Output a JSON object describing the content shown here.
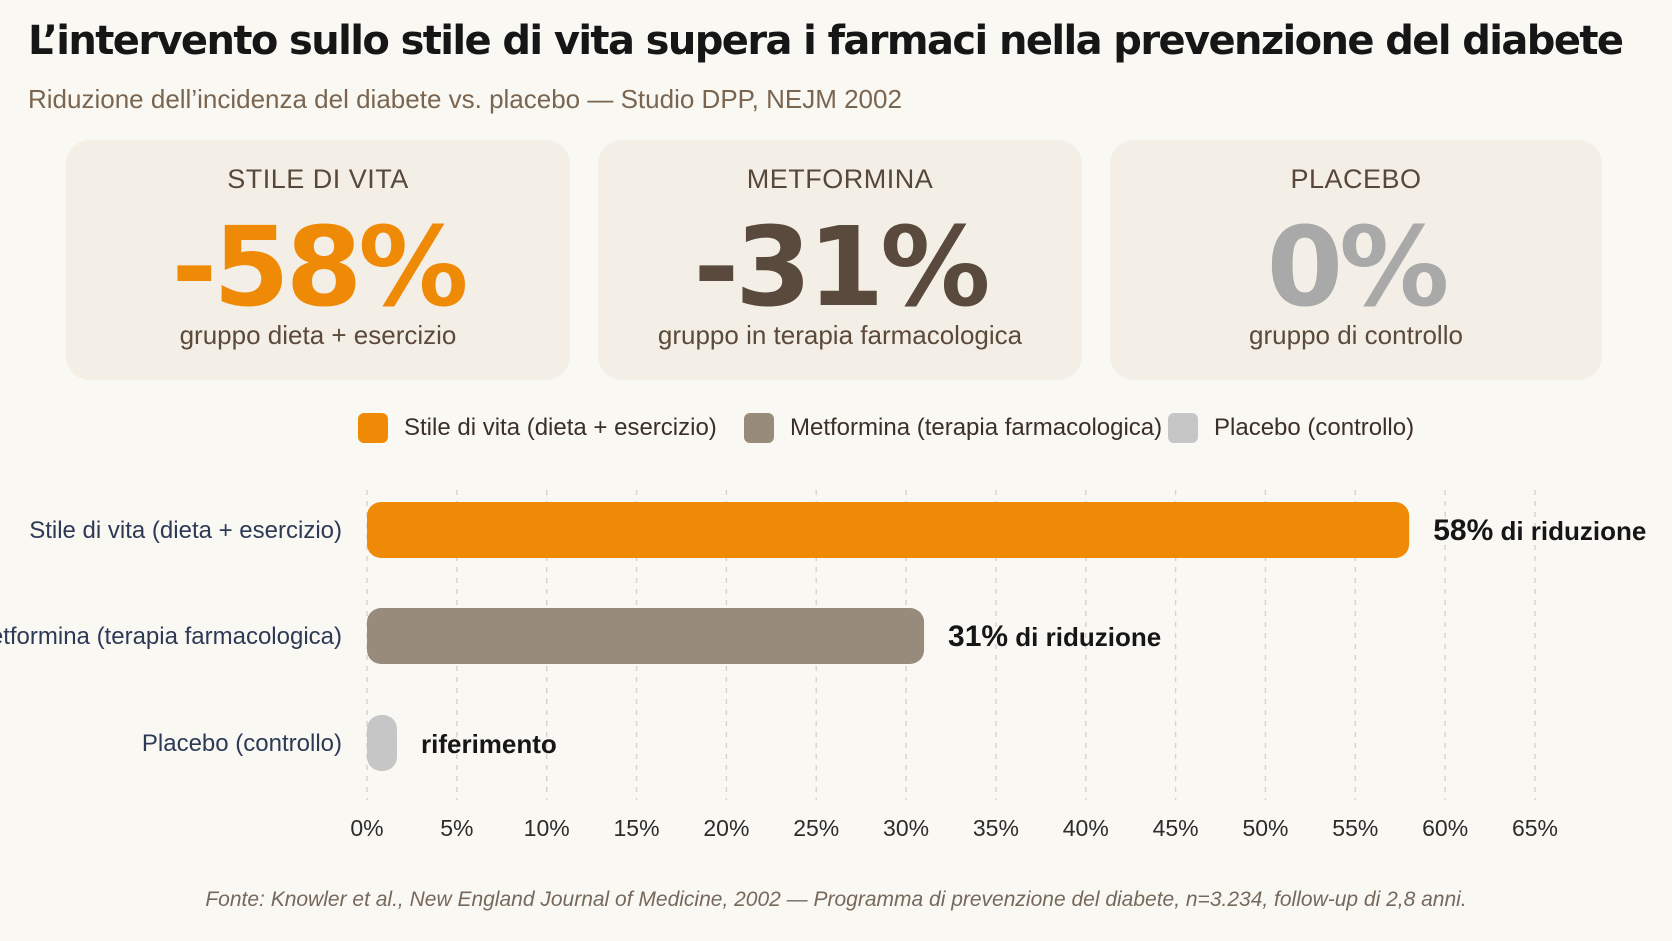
{
  "title": "L’intervento sullo stile di vita supera i farmaci nella prevenzione del diabete",
  "subtitle": "Riduzione dell’incidenza del diabete vs. placebo — Studio DPP, NEJM 2002",
  "cards": [
    {
      "label": "STILE DI VITA",
      "value": "-58%",
      "desc": "gruppo dieta + esercizio",
      "color": "#ef8a06"
    },
    {
      "label": "METFORMINA",
      "value": "-31%",
      "desc": "gruppo in terapia farmacologica",
      "color": "#5a4a3d"
    },
    {
      "label": "PLACEBO",
      "value": "0%",
      "desc": "gruppo di controllo",
      "color": "#a9a9a9"
    }
  ],
  "legend": [
    {
      "label": "Stile di vita (dieta + esercizio)",
      "color": "#ef8a06"
    },
    {
      "label": "Metformina (terapia farmacologica)",
      "color": "#978b7b"
    },
    {
      "label": "Placebo (controllo)",
      "color": "#c6c6c6"
    }
  ],
  "chart_data": {
    "type": "bar",
    "orientation": "horizontal",
    "categories": [
      "Stile di vita (dieta + esercizio)",
      "Metformina (terapia farmacologica)",
      "Placebo (controllo)"
    ],
    "values": [
      58,
      31,
      0
    ],
    "colors": [
      "#ef8a06",
      "#978b7b",
      "#c6c6c6"
    ],
    "annotations": [
      {
        "number": "58%",
        "text": " di riduzione"
      },
      {
        "number": "31%",
        "text": " di riduzione"
      },
      {
        "number": "",
        "text": "riferimento"
      }
    ],
    "xlim": [
      0,
      65
    ],
    "xticks": [
      0,
      5,
      10,
      15,
      20,
      25,
      30,
      35,
      40,
      45,
      50,
      55,
      60,
      65
    ],
    "xtick_labels": [
      "0%",
      "5%",
      "10%",
      "15%",
      "20%",
      "25%",
      "30%",
      "35%",
      "40%",
      "45%",
      "50%",
      "55%",
      "60%",
      "65%"
    ],
    "grid": "vertical dashed",
    "legend_position": "top-center"
  },
  "source": "Fonte: Knowler et al., New England Journal of Medicine, 2002 — Programma di prevenzione del diabete, n=3.234, follow-up di 2,8 anni."
}
